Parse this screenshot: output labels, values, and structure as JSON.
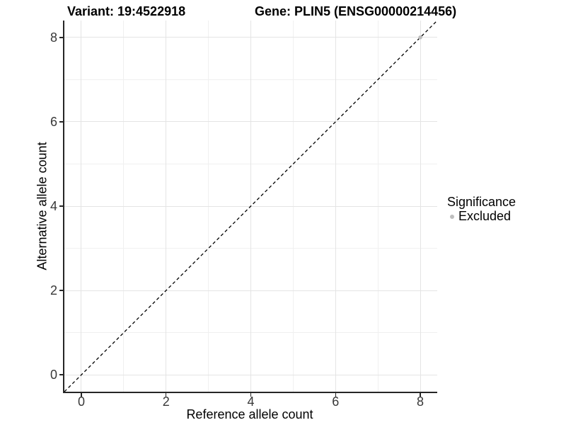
{
  "header": {
    "variant_title": "Variant: 19:4522918",
    "gene_title": "Gene: PLIN5 (ENSG00000214456)"
  },
  "axes": {
    "x_label": "Reference allele count",
    "y_label": "Alternative allele count"
  },
  "legend": {
    "title": "Significance",
    "items": [
      {
        "label": "Excluded",
        "color": "#bebebe"
      }
    ]
  },
  "colors": {
    "grid_major": "#e4e4e4",
    "grid_minor": "#f0f0f0",
    "axis_line": "#262626",
    "tick_label": "#383838",
    "abline": "#000000",
    "point": "#bebebe"
  },
  "chart_data": {
    "type": "scatter",
    "title": "Variant: 19:4522918   Gene: PLIN5 (ENSG00000214456)",
    "xlabel": "Reference allele count",
    "ylabel": "Alternative allele count",
    "xlim": [
      -0.4,
      8.4
    ],
    "ylim": [
      -0.4,
      8.4
    ],
    "x_ticks": [
      0,
      2,
      4,
      6,
      8
    ],
    "y_ticks": [
      0,
      2,
      4,
      6,
      8
    ],
    "x_minor": [
      1,
      3,
      5,
      7
    ],
    "y_minor": [
      1,
      3,
      5,
      7
    ],
    "grid": true,
    "legend_position": "right",
    "legend_title": "Significance",
    "series": [
      {
        "name": "Excluded",
        "color": "#bebebe",
        "points": [
          {
            "x": 8,
            "y": 8
          }
        ]
      }
    ],
    "abline": {
      "slope": 1,
      "intercept": 0,
      "style": "dashed",
      "color": "#000000"
    }
  }
}
